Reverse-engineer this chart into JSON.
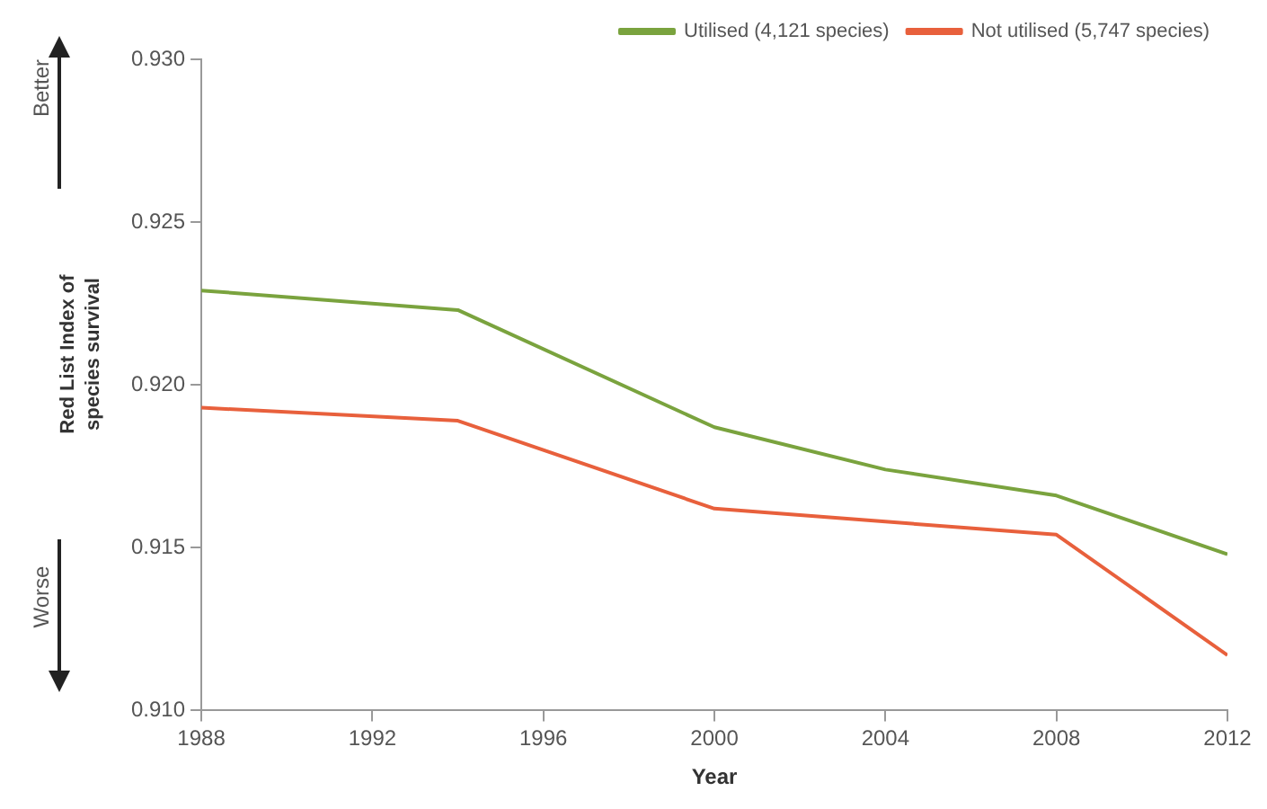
{
  "chart_data": {
    "type": "line",
    "xlabel": "Year",
    "ylabel": "Red List Index of species survival",
    "x": [
      1988,
      1994,
      2000,
      2004,
      2008,
      2012
    ],
    "series": [
      {
        "name": "Utilised (4,121 species)",
        "color": "#7aa33e",
        "values": [
          0.9229,
          0.9223,
          0.9187,
          0.9174,
          0.9166,
          0.9148
        ]
      },
      {
        "name": "Not utilised (5,747 species)",
        "color": "#e8603c",
        "values": [
          0.9193,
          0.9189,
          0.9162,
          0.9158,
          0.9154,
          0.9117
        ]
      }
    ],
    "xlim": [
      1988,
      2012
    ],
    "xticks": [
      1988,
      1992,
      1996,
      2000,
      2004,
      2008,
      2012
    ],
    "ylim": [
      0.91,
      0.93
    ],
    "yticks": [
      {
        "value": 0.91,
        "label": "0.910"
      },
      {
        "value": 0.915,
        "label": "0.915"
      },
      {
        "value": 0.92,
        "label": "0.920"
      },
      {
        "value": 0.925,
        "label": "0.925"
      },
      {
        "value": 0.93,
        "label": "0.930"
      }
    ],
    "grid": false,
    "legend": "top right",
    "marker": "none",
    "line_style": "solid",
    "annotations": [
      "Better",
      "Worse"
    ]
  }
}
